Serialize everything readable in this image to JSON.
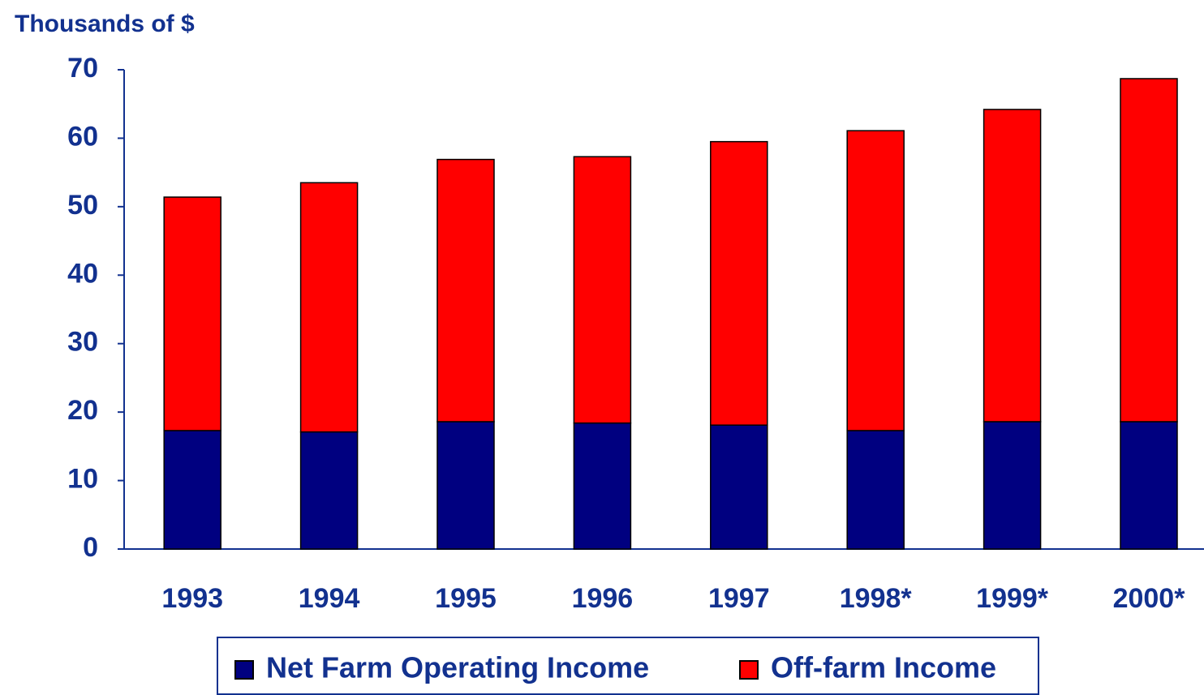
{
  "chart_data": {
    "type": "stacked_bar",
    "y_label": "Thousands of $",
    "categories": [
      "1993",
      "1994",
      "1995",
      "1996",
      "1997",
      "1998*",
      "1999*",
      "2000*"
    ],
    "series": [
      {
        "name": "Net Farm Operating Income",
        "color": "#000080",
        "values": [
          17.3,
          17.1,
          18.6,
          18.4,
          18.1,
          17.3,
          18.6,
          18.6
        ]
      },
      {
        "name": "Off-farm Income",
        "color": "#ff0000",
        "values": [
          34.1,
          36.4,
          38.3,
          38.9,
          41.4,
          43.8,
          45.6,
          50.1
        ]
      }
    ],
    "ylim": [
      0,
      70
    ],
    "yticks": [
      0,
      10,
      20,
      30,
      40,
      50,
      60,
      70
    ],
    "grid": false,
    "legend": "bottom"
  }
}
